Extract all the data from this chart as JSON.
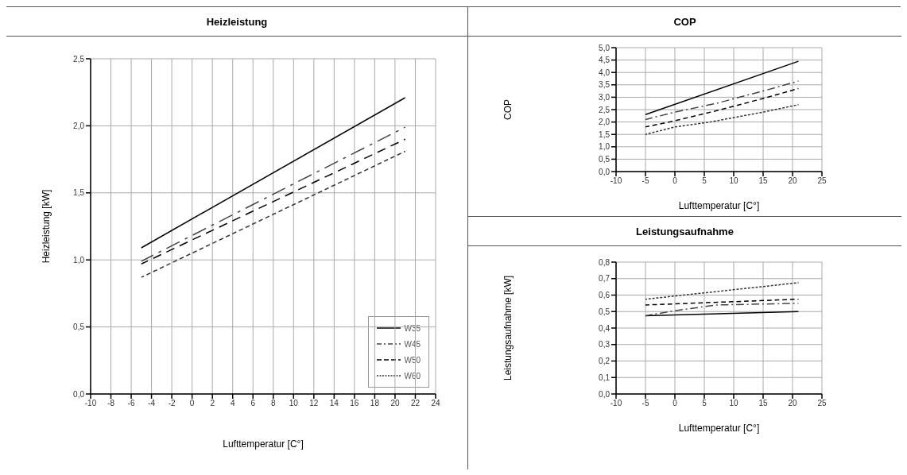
{
  "chart_data": [
    {
      "type": "line",
      "title": "Heizleistung",
      "xlabel": "Lufttemperatur [C°]",
      "ylabel": "Heizleistung [kW]",
      "grid": true,
      "legend": "bottom right",
      "xlim": [
        -10,
        24
      ],
      "xticks": [
        -10,
        -8,
        -6,
        -4,
        -2,
        0,
        2,
        4,
        6,
        8,
        10,
        12,
        14,
        16,
        18,
        20,
        22,
        24
      ],
      "ylim": [
        0,
        2.5
      ],
      "yticks": [
        {
          "value": 0,
          "label": "0,0"
        },
        {
          "value": 0.5,
          "label": "0,5"
        },
        {
          "value": 1,
          "label": "1,0"
        },
        {
          "value": 1.5,
          "label": "1,5"
        },
        {
          "value": 2,
          "label": "2,0"
        },
        {
          "value": 2.5,
          "label": "2,5"
        }
      ],
      "series": [
        {
          "name": "W35",
          "color": "#000000",
          "line_style": "solid",
          "x": [
            -5,
            21
          ],
          "values": [
            1.09,
            2.21
          ]
        },
        {
          "name": "W45",
          "color": "#444444",
          "line_style": "dashdot",
          "x": [
            -5,
            21
          ],
          "values": [
            0.99,
            1.99
          ]
        },
        {
          "name": "W50",
          "color": "#000000",
          "line_style": "dashed",
          "x": [
            -5,
            21
          ],
          "values": [
            0.97,
            1.9
          ]
        },
        {
          "name": "W60",
          "color": "#333333",
          "line_style": "dotted",
          "x": [
            -5,
            21
          ],
          "values": [
            0.87,
            1.81
          ]
        }
      ]
    },
    {
      "type": "line",
      "title": "COP",
      "xlabel": "Lufttemperatur [C°]",
      "ylabel": "COP",
      "grid": true,
      "xlim": [
        -10,
        25
      ],
      "xticks": [
        -10,
        -5,
        0,
        5,
        10,
        15,
        20,
        25
      ],
      "ylim": [
        0,
        5
      ],
      "yticks": [
        {
          "value": 0,
          "label": "0,0"
        },
        {
          "value": 0.5,
          "label": "0,5"
        },
        {
          "value": 1,
          "label": "1,0"
        },
        {
          "value": 1.5,
          "label": "1,5"
        },
        {
          "value": 2,
          "label": "2,0"
        },
        {
          "value": 2.5,
          "label": "2,5"
        },
        {
          "value": 3,
          "label": "3,0"
        },
        {
          "value": 3.5,
          "label": "3,5"
        },
        {
          "value": 4,
          "label": "4,0"
        },
        {
          "value": 4.5,
          "label": "4,5"
        },
        {
          "value": 5,
          "label": "5,0"
        }
      ],
      "series": [
        {
          "color": "#000000",
          "line_style": "solid",
          "x": [
            -5,
            21
          ],
          "values": [
            2.3,
            4.45
          ]
        },
        {
          "color": "#444444",
          "line_style": "dashdot",
          "x": [
            -5,
            0,
            7,
            15,
            21
          ],
          "values": [
            2.1,
            2.4,
            2.75,
            3.25,
            3.65
          ]
        },
        {
          "color": "#000000",
          "line_style": "dashed",
          "x": [
            -5,
            0,
            7,
            15,
            21
          ],
          "values": [
            1.8,
            2.05,
            2.45,
            2.95,
            3.35
          ]
        },
        {
          "color": "#333333",
          "line_style": "dotted",
          "x": [
            -5,
            0,
            6,
            15,
            21
          ],
          "values": [
            1.5,
            1.8,
            2.0,
            2.4,
            2.7
          ]
        }
      ]
    },
    {
      "type": "line",
      "title": "Leistungsaufnahme",
      "xlabel": "Lufttemperatur [C°]",
      "ylabel": "Leistungsaufnahme [kW]",
      "grid": true,
      "xlim": [
        -10,
        25
      ],
      "xticks": [
        -10,
        -5,
        0,
        5,
        10,
        15,
        20,
        25
      ],
      "ylim": [
        0,
        0.8
      ],
      "yticks": [
        {
          "value": 0,
          "label": "0,0"
        },
        {
          "value": 0.1,
          "label": "0,1"
        },
        {
          "value": 0.2,
          "label": "0,2"
        },
        {
          "value": 0.3,
          "label": "0,3"
        },
        {
          "value": 0.4,
          "label": "0,4"
        },
        {
          "value": 0.5,
          "label": "0,5"
        },
        {
          "value": 0.6,
          "label": "0,6"
        },
        {
          "value": 0.7,
          "label": "0,7"
        },
        {
          "value": 0.8,
          "label": "0,8"
        }
      ],
      "series": [
        {
          "color": "#000000",
          "line_style": "solid",
          "x": [
            -5,
            21
          ],
          "values": [
            0.475,
            0.5
          ]
        },
        {
          "color": "#444444",
          "line_style": "dashdot",
          "x": [
            -5,
            0,
            7,
            21
          ],
          "values": [
            0.475,
            0.505,
            0.54,
            0.55
          ]
        },
        {
          "color": "#000000",
          "line_style": "dashed",
          "x": [
            -5,
            21
          ],
          "values": [
            0.54,
            0.575
          ]
        },
        {
          "color": "#333333",
          "line_style": "dotted",
          "x": [
            -5,
            21
          ],
          "values": [
            0.575,
            0.675
          ]
        }
      ]
    }
  ]
}
